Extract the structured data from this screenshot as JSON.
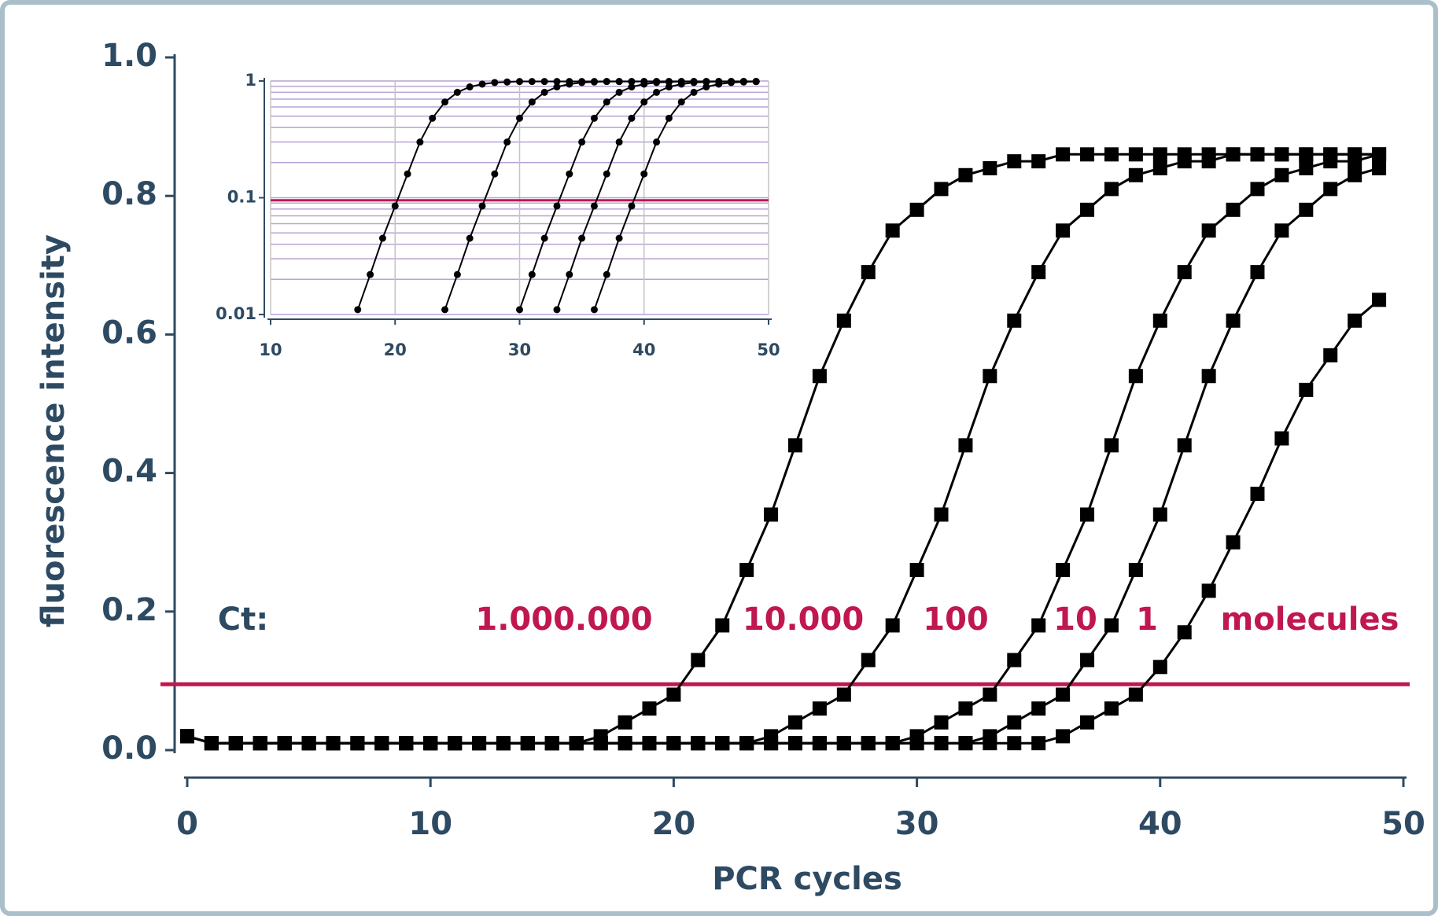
{
  "chart_data": [
    {
      "type": "line",
      "xlabel": "PCR cycles",
      "ylabel": "fluorescence intensity",
      "text_color": "#2e4a62",
      "marker": "square",
      "xlim": [
        0,
        50
      ],
      "ylim": [
        0,
        1
      ],
      "xticks": [
        0,
        10,
        20,
        30,
        40,
        50
      ],
      "yticks": [
        {
          "value": 0,
          "label": "0.0"
        },
        0.2,
        0.4,
        0.6,
        0.8,
        {
          "value": 1,
          "label": "1.0"
        }
      ],
      "threshold": 0.095,
      "threshold_color": "#c0174f",
      "annotations": [
        "Ct:",
        "molecules"
      ],
      "x": [
        0,
        1,
        2,
        3,
        4,
        5,
        6,
        7,
        8,
        9,
        10,
        11,
        12,
        13,
        14,
        15,
        16,
        17,
        18,
        19,
        20,
        21,
        22,
        23,
        24,
        25,
        26,
        27,
        28,
        29,
        30,
        31,
        32,
        33,
        34,
        35,
        36,
        37,
        38,
        39,
        40,
        41,
        42,
        43,
        44,
        45,
        46,
        47,
        48,
        49
      ],
      "series": [
        {
          "name": "1.000.000",
          "color": "#000000",
          "values": [
            0.02,
            0.01,
            0.01,
            0.01,
            0.01,
            0.01,
            0.01,
            0.01,
            0.01,
            0.01,
            0.01,
            0.01,
            0.01,
            0.01,
            0.01,
            0.01,
            0.01,
            0.02,
            0.04,
            0.06,
            0.08,
            0.13,
            0.18,
            0.26,
            0.34,
            0.44,
            0.54,
            0.62,
            0.69,
            0.75,
            0.78,
            0.81,
            0.83,
            0.84,
            0.85,
            0.85,
            0.86,
            0.86,
            0.86,
            0.86,
            0.86,
            0.86,
            0.86,
            0.86,
            0.86,
            0.86,
            0.86,
            0.86,
            0.86,
            0.86
          ]
        },
        {
          "name": "10.000",
          "color": "#000000",
          "values": [
            0.02,
            0.01,
            0.01,
            0.01,
            0.01,
            0.01,
            0.01,
            0.01,
            0.01,
            0.01,
            0.01,
            0.01,
            0.01,
            0.01,
            0.01,
            0.01,
            0.01,
            0.01,
            0.01,
            0.01,
            0.01,
            0.01,
            0.01,
            0.01,
            0.02,
            0.04,
            0.06,
            0.08,
            0.13,
            0.18,
            0.26,
            0.34,
            0.44,
            0.54,
            0.62,
            0.69,
            0.75,
            0.78,
            0.81,
            0.83,
            0.84,
            0.85,
            0.85,
            0.86,
            0.86,
            0.86,
            0.86,
            0.86,
            0.86,
            0.86
          ]
        },
        {
          "name": "100",
          "color": "#000000",
          "values": [
            0.02,
            0.01,
            0.01,
            0.01,
            0.01,
            0.01,
            0.01,
            0.01,
            0.01,
            0.01,
            0.01,
            0.01,
            0.01,
            0.01,
            0.01,
            0.01,
            0.01,
            0.01,
            0.01,
            0.01,
            0.01,
            0.01,
            0.01,
            0.01,
            0.01,
            0.01,
            0.01,
            0.01,
            0.01,
            0.01,
            0.02,
            0.04,
            0.06,
            0.08,
            0.13,
            0.18,
            0.26,
            0.34,
            0.44,
            0.54,
            0.62,
            0.69,
            0.75,
            0.78,
            0.81,
            0.83,
            0.84,
            0.85,
            0.85,
            0.86
          ]
        },
        {
          "name": "10",
          "color": "#000000",
          "values": [
            0.02,
            0.01,
            0.01,
            0.01,
            0.01,
            0.01,
            0.01,
            0.01,
            0.01,
            0.01,
            0.01,
            0.01,
            0.01,
            0.01,
            0.01,
            0.01,
            0.01,
            0.01,
            0.01,
            0.01,
            0.01,
            0.01,
            0.01,
            0.01,
            0.01,
            0.01,
            0.01,
            0.01,
            0.01,
            0.01,
            0.01,
            0.01,
            0.01,
            0.02,
            0.04,
            0.06,
            0.08,
            0.13,
            0.18,
            0.26,
            0.34,
            0.44,
            0.54,
            0.62,
            0.69,
            0.75,
            0.78,
            0.81,
            0.83,
            0.84
          ]
        },
        {
          "name": "1",
          "color": "#000000",
          "values": [
            0.02,
            0.01,
            0.01,
            0.01,
            0.01,
            0.01,
            0.01,
            0.01,
            0.01,
            0.01,
            0.01,
            0.01,
            0.01,
            0.01,
            0.01,
            0.01,
            0.01,
            0.01,
            0.01,
            0.01,
            0.01,
            0.01,
            0.01,
            0.01,
            0.01,
            0.01,
            0.01,
            0.01,
            0.01,
            0.01,
            0.01,
            0.01,
            0.01,
            0.01,
            0.01,
            0.01,
            0.02,
            0.04,
            0.06,
            0.08,
            0.12,
            0.17,
            0.23,
            0.3,
            0.37,
            0.45,
            0.52,
            0.57,
            0.62,
            0.65
          ]
        }
      ]
    },
    {
      "type": "line",
      "log_y": true,
      "grid": true,
      "x_grid": true,
      "text_color": "#2e4a62",
      "marker": "circle",
      "grid_color": "#b9a3d6",
      "x_grid_color": "#c4c4c4",
      "xlim": [
        10,
        50
      ],
      "ylim": [
        0.01,
        1
      ],
      "xticks": [
        10,
        20,
        30,
        40,
        50
      ],
      "yticks": [
        0.01,
        0.1,
        1
      ],
      "y_minor_grid": [
        0.02,
        0.03,
        0.04,
        0.05,
        0.06,
        0.07,
        0.08,
        0.09,
        0.2,
        0.3,
        0.4,
        0.5,
        0.6,
        0.7,
        0.8,
        0.9
      ],
      "threshold": 0.095,
      "threshold_color": "#c0174f",
      "x": [
        10,
        11,
        12,
        13,
        14,
        15,
        16,
        17,
        18,
        19,
        20,
        21,
        22,
        23,
        24,
        25,
        26,
        27,
        28,
        29,
        30,
        31,
        32,
        33,
        34,
        35,
        36,
        37,
        38,
        39,
        40,
        41,
        42,
        43,
        44,
        45,
        46,
        47,
        48,
        49
      ],
      "series": [
        {
          "color": "#000000",
          "values": [
            null,
            null,
            null,
            null,
            null,
            null,
            null,
            0.011,
            0.022,
            0.045,
            0.085,
            0.16,
            0.3,
            0.48,
            0.66,
            0.8,
            0.89,
            0.94,
            0.97,
            0.98,
            0.99,
            0.99,
            0.99,
            0.99,
            0.99,
            0.99,
            0.99,
            0.99,
            0.99,
            0.99,
            0.99,
            0.99,
            0.99,
            0.99,
            0.99,
            0.99,
            0.99,
            0.99,
            0.99,
            0.99
          ]
        },
        {
          "color": "#000000",
          "values": [
            null,
            null,
            null,
            null,
            null,
            null,
            null,
            null,
            null,
            null,
            null,
            null,
            null,
            null,
            0.011,
            0.022,
            0.045,
            0.085,
            0.16,
            0.3,
            0.48,
            0.66,
            0.8,
            0.89,
            0.94,
            0.97,
            0.98,
            0.99,
            0.99,
            0.99,
            0.99,
            0.99,
            0.99,
            0.99,
            0.99,
            0.99,
            0.99,
            0.99,
            0.99,
            0.99
          ]
        },
        {
          "color": "#000000",
          "values": [
            null,
            null,
            null,
            null,
            null,
            null,
            null,
            null,
            null,
            null,
            null,
            null,
            null,
            null,
            null,
            null,
            null,
            null,
            null,
            null,
            0.011,
            0.022,
            0.045,
            0.085,
            0.16,
            0.3,
            0.48,
            0.66,
            0.8,
            0.89,
            0.94,
            0.97,
            0.98,
            0.99,
            0.99,
            0.99,
            0.99,
            0.99,
            0.99,
            0.99
          ]
        },
        {
          "color": "#000000",
          "values": [
            null,
            null,
            null,
            null,
            null,
            null,
            null,
            null,
            null,
            null,
            null,
            null,
            null,
            null,
            null,
            null,
            null,
            null,
            null,
            null,
            null,
            null,
            null,
            0.011,
            0.022,
            0.045,
            0.085,
            0.16,
            0.3,
            0.48,
            0.66,
            0.8,
            0.89,
            0.94,
            0.97,
            0.98,
            0.99,
            0.99,
            0.99,
            0.99
          ]
        },
        {
          "color": "#000000",
          "values": [
            null,
            null,
            null,
            null,
            null,
            null,
            null,
            null,
            null,
            null,
            null,
            null,
            null,
            null,
            null,
            null,
            null,
            null,
            null,
            null,
            null,
            null,
            null,
            null,
            null,
            null,
            0.011,
            0.022,
            0.045,
            0.085,
            0.16,
            0.3,
            0.48,
            0.66,
            0.8,
            0.89,
            0.94,
            0.97,
            0.98,
            0.99
          ]
        }
      ]
    }
  ]
}
